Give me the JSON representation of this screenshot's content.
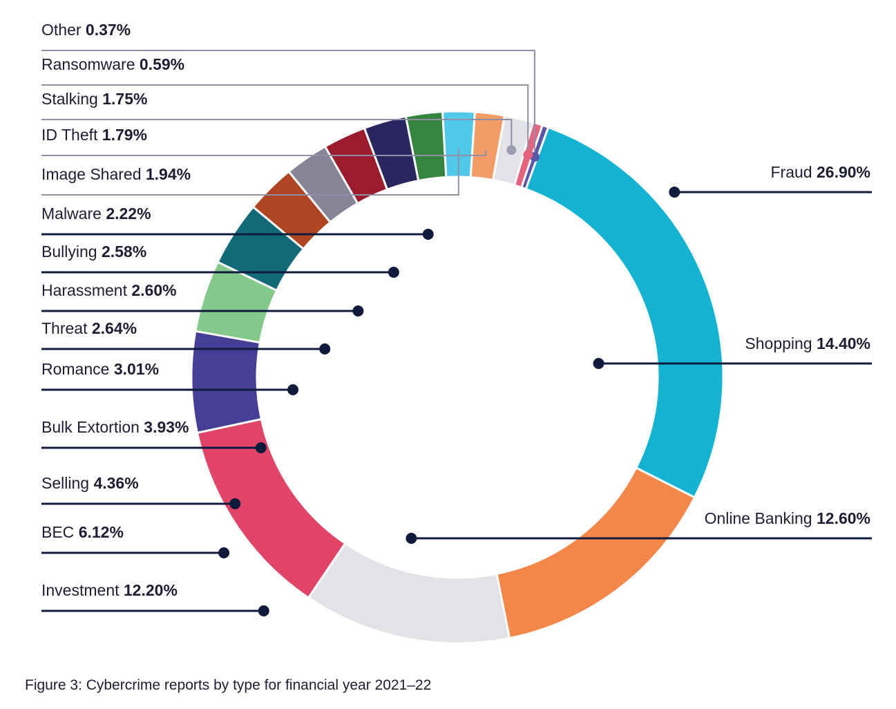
{
  "caption": "Figure 3: Cybercrime reports by type for financial year 2021–22",
  "chart_data": {
    "type": "pie",
    "variant": "donut",
    "start": "top, clockwise",
    "series": [
      {
        "name": "Fraud",
        "value": 26.9,
        "label": "26.90%",
        "color": "#14b3d2",
        "side": "right"
      },
      {
        "name": "Shopping",
        "value": 14.4,
        "label": "14.40%",
        "color": "#f3874a",
        "side": "right"
      },
      {
        "name": "Online Banking",
        "value": 12.6,
        "label": "12.60%",
        "color": "#e2e3e7",
        "side": "right"
      },
      {
        "name": "Investment",
        "value": 12.2,
        "label": "12.20%",
        "color": "#e04567",
        "side": "left"
      },
      {
        "name": "BEC",
        "value": 6.12,
        "label": "6.12%",
        "color": "#453f97",
        "side": "left"
      },
      {
        "name": "Selling",
        "value": 4.36,
        "label": "4.36%",
        "color": "#82c98b",
        "side": "left"
      },
      {
        "name": "Bulk Extortion",
        "value": 3.93,
        "label": "3.93%",
        "color": "#126a79",
        "side": "left"
      },
      {
        "name": "Romance",
        "value": 3.01,
        "label": "3.01%",
        "color": "#b04524",
        "side": "left"
      },
      {
        "name": "Threat",
        "value": 2.64,
        "label": "2.64%",
        "color": "#858597",
        "side": "left"
      },
      {
        "name": "Harassment",
        "value": 2.6,
        "label": "2.60%",
        "color": "#9b1b2f",
        "side": "left"
      },
      {
        "name": "Bullying",
        "value": 2.58,
        "label": "2.58%",
        "color": "#2a2660",
        "side": "left"
      },
      {
        "name": "Malware",
        "value": 2.22,
        "label": "2.22%",
        "color": "#358540",
        "side": "left"
      },
      {
        "name": "Image Shared",
        "value": 1.94,
        "label": "1.94%",
        "color": "#4fc8ea",
        "side": "left"
      },
      {
        "name": "ID Theft",
        "value": 1.79,
        "label": "1.79%",
        "color": "#f49c67",
        "side": "left"
      },
      {
        "name": "Stalking",
        "value": 1.75,
        "label": "1.75%",
        "color": "#e2e3e7",
        "side": "left"
      },
      {
        "name": "Ransomware",
        "value": 0.59,
        "label": "0.59%",
        "color": "#e4647f",
        "side": "left"
      },
      {
        "name": "Other",
        "value": 0.37,
        "label": "0.37%",
        "color": "#5a55a6",
        "side": "left"
      }
    ]
  }
}
